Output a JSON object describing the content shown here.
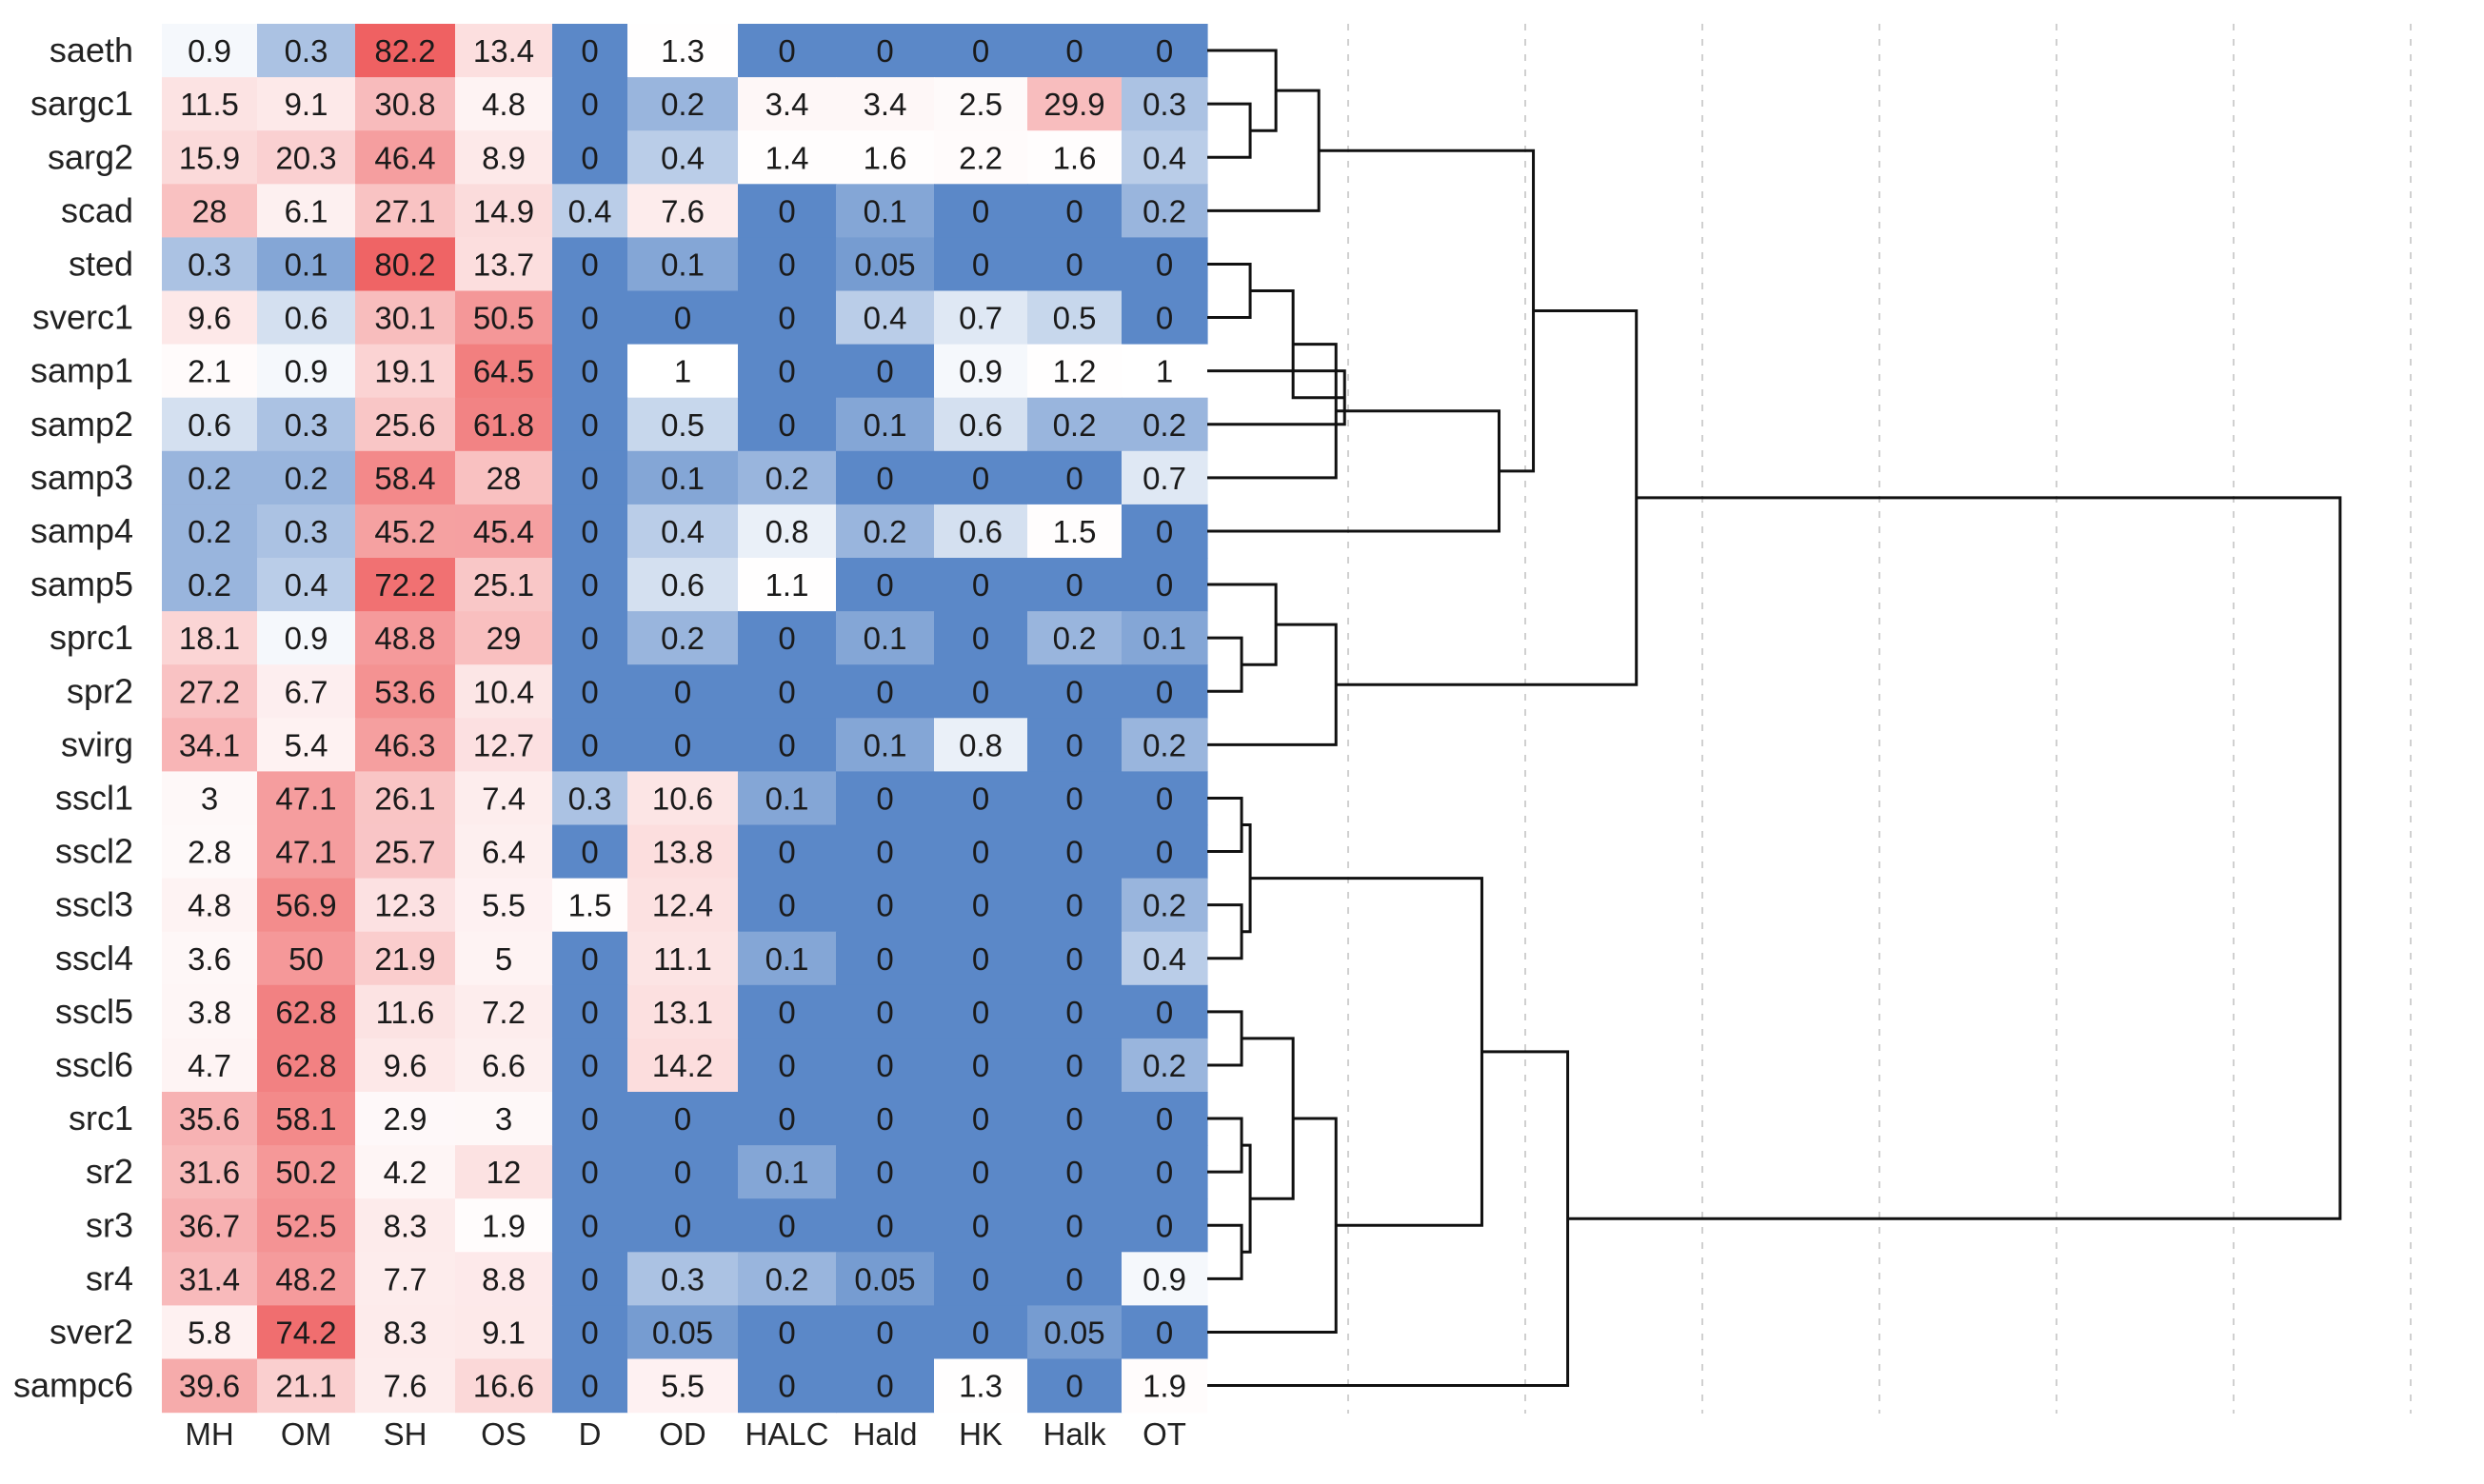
{
  "chart_data": {
    "type": "heatmap",
    "title": "",
    "columns": [
      "MH",
      "OM",
      "SH",
      "OS",
      "D",
      "OD",
      "HALC",
      "Hald",
      "HK",
      "Halk",
      "OT"
    ],
    "rows": [
      {
        "label": "saeth",
        "values": [
          "0.9",
          "0.3",
          "82.2",
          "13.4",
          "0",
          "1.3",
          "0",
          "0",
          "0",
          "0",
          "0"
        ]
      },
      {
        "label": "sargc1",
        "values": [
          "11.5",
          "9.1",
          "30.8",
          "4.8",
          "0",
          "0.2",
          "3.4",
          "3.4",
          "2.5",
          "29.9",
          "0.3"
        ]
      },
      {
        "label": "sarg2",
        "values": [
          "15.9",
          "20.3",
          "46.4",
          "8.9",
          "0",
          "0.4",
          "1.4",
          "1.6",
          "2.2",
          "1.6",
          "0.4"
        ]
      },
      {
        "label": "scad",
        "values": [
          "28",
          "6.1",
          "27.1",
          "14.9",
          "0.4",
          "7.6",
          "0",
          "0.1",
          "0",
          "0",
          "0.2"
        ]
      },
      {
        "label": "sted",
        "values": [
          "0.3",
          "0.1",
          "80.2",
          "13.7",
          "0",
          "0.1",
          "0",
          "0.05",
          "0",
          "0",
          "0"
        ]
      },
      {
        "label": "sverc1",
        "values": [
          "9.6",
          "0.6",
          "30.1",
          "50.5",
          "0",
          "0",
          "0",
          "0.4",
          "0.7",
          "0.5",
          "0"
        ]
      },
      {
        "label": "samp1",
        "values": [
          "2.1",
          "0.9",
          "19.1",
          "64.5",
          "0",
          "1",
          "0",
          "0",
          "0.9",
          "1.2",
          "1"
        ]
      },
      {
        "label": "samp2",
        "values": [
          "0.6",
          "0.3",
          "25.6",
          "61.8",
          "0",
          "0.5",
          "0",
          "0.1",
          "0.6",
          "0.2",
          "0.2"
        ]
      },
      {
        "label": "samp3",
        "values": [
          "0.2",
          "0.2",
          "58.4",
          "28",
          "0",
          "0.1",
          "0.2",
          "0",
          "0",
          "0",
          "0.7"
        ]
      },
      {
        "label": "samp4",
        "values": [
          "0.2",
          "0.3",
          "45.2",
          "45.4",
          "0",
          "0.4",
          "0.8",
          "0.2",
          "0.6",
          "1.5",
          "0"
        ]
      },
      {
        "label": "samp5",
        "values": [
          "0.2",
          "0.4",
          "72.2",
          "25.1",
          "0",
          "0.6",
          "1.1",
          "0",
          "0",
          "0",
          "0"
        ]
      },
      {
        "label": "sprc1",
        "values": [
          "18.1",
          "0.9",
          "48.8",
          "29",
          "0",
          "0.2",
          "0",
          "0.1",
          "0",
          "0.2",
          "0.1"
        ]
      },
      {
        "label": "spr2",
        "values": [
          "27.2",
          "6.7",
          "53.6",
          "10.4",
          "0",
          "0",
          "0",
          "0",
          "0",
          "0",
          "0"
        ]
      },
      {
        "label": "svirg",
        "values": [
          "34.1",
          "5.4",
          "46.3",
          "12.7",
          "0",
          "0",
          "0",
          "0.1",
          "0.8",
          "0",
          "0.2"
        ]
      },
      {
        "label": "sscl1",
        "values": [
          "3",
          "47.1",
          "26.1",
          "7.4",
          "0.3",
          "10.6",
          "0.1",
          "0",
          "0",
          "0",
          "0"
        ]
      },
      {
        "label": "sscl2",
        "values": [
          "2.8",
          "47.1",
          "25.7",
          "6.4",
          "0",
          "13.8",
          "0",
          "0",
          "0",
          "0",
          "0"
        ]
      },
      {
        "label": "sscl3",
        "values": [
          "4.8",
          "56.9",
          "12.3",
          "5.5",
          "1.5",
          "12.4",
          "0",
          "0",
          "0",
          "0",
          "0.2"
        ]
      },
      {
        "label": "sscl4",
        "values": [
          "3.6",
          "50",
          "21.9",
          "5",
          "0",
          "11.1",
          "0.1",
          "0",
          "0",
          "0",
          "0.4"
        ]
      },
      {
        "label": "sscl5",
        "values": [
          "3.8",
          "62.8",
          "11.6",
          "7.2",
          "0",
          "13.1",
          "0",
          "0",
          "0",
          "0",
          "0"
        ]
      },
      {
        "label": "sscl6",
        "values": [
          "4.7",
          "62.8",
          "9.6",
          "6.6",
          "0",
          "14.2",
          "0",
          "0",
          "0",
          "0",
          "0.2"
        ]
      },
      {
        "label": "src1",
        "values": [
          "35.6",
          "58.1",
          "2.9",
          "3",
          "0",
          "0",
          "0",
          "0",
          "0",
          "0",
          "0"
        ]
      },
      {
        "label": "sr2",
        "values": [
          "31.6",
          "50.2",
          "4.2",
          "12",
          "0",
          "0",
          "0.1",
          "0",
          "0",
          "0",
          "0"
        ]
      },
      {
        "label": "sr3",
        "values": [
          "36.7",
          "52.5",
          "8.3",
          "1.9",
          "0",
          "0",
          "0",
          "0",
          "0",
          "0",
          "0"
        ]
      },
      {
        "label": "sr4",
        "values": [
          "31.4",
          "48.2",
          "7.7",
          "8.8",
          "0",
          "0.3",
          "0.2",
          "0.05",
          "0",
          "0",
          "0.9"
        ]
      },
      {
        "label": "sver2",
        "values": [
          "5.8",
          "74.2",
          "8.3",
          "9.1",
          "0",
          "0.05",
          "0",
          "0",
          "0",
          "0.05",
          "0"
        ]
      },
      {
        "label": "sampc6",
        "values": [
          "39.6",
          "21.1",
          "7.6",
          "16.6",
          "0",
          "5.5",
          "0",
          "0",
          "1.3",
          "0",
          "1.9"
        ]
      }
    ],
    "color_scale": {
      "min_color": "#5b88c8",
      "mid_color": "#ffffff",
      "max_color": "#ef6162"
    },
    "dendrogram": {
      "leaf_order": [
        "saeth",
        "sargc1",
        "sarg2",
        "scad",
        "sted",
        "sverc1",
        "samp1",
        "samp2",
        "samp3",
        "samp4",
        "samp5",
        "sprc1",
        "spr2",
        "svirg",
        "sscl1",
        "sscl2",
        "sscl3",
        "sscl4",
        "sscl5",
        "sscl6",
        "src1",
        "sr2",
        "sr3",
        "sr4",
        "sver2",
        "sampc6"
      ],
      "height_unit": "relative linkage distance (tick gridlines unlabeled)",
      "height_range": [
        0,
        7
      ],
      "merges": [
        {
          "a": "L:sargc1",
          "b": "L:sarg2",
          "height": 0.25
        },
        {
          "a": "L:saeth",
          "b": "N0",
          "height": 0.4
        },
        {
          "a": "L:sted",
          "b": "L:sverc1",
          "height": 0.25
        },
        {
          "a": "L:samp1",
          "b": "L:samp2",
          "height": 0.8
        },
        {
          "a": "N2",
          "b": "N3",
          "height": 0.5
        },
        {
          "a": "N4",
          "b": "L:samp3",
          "height": 0.75
        },
        {
          "a": "N5",
          "b": "L:samp4",
          "height": 1.7
        },
        {
          "a": "N1",
          "b": "L:scad",
          "height": 0.65
        },
        {
          "a": "N7",
          "b": "N6",
          "height": 1.9
        },
        {
          "a": "L:sprc1",
          "b": "L:spr2",
          "height": 0.2
        },
        {
          "a": "L:samp5",
          "b": "N9",
          "height": 0.4
        },
        {
          "a": "N10",
          "b": "L:svirg",
          "height": 0.75
        },
        {
          "a": "N8",
          "b": "N11",
          "height": 2.5
        },
        {
          "a": "L:sscl1",
          "b": "L:sscl2",
          "height": 0.2
        },
        {
          "a": "L:sscl3",
          "b": "L:sscl4",
          "height": 0.2
        },
        {
          "a": "N13",
          "b": "N14",
          "height": 0.25
        },
        {
          "a": "L:sscl5",
          "b": "L:sscl6",
          "height": 0.2
        },
        {
          "a": "L:sr3",
          "b": "L:sr4",
          "height": 0.2
        },
        {
          "a": "L:src1",
          "b": "L:sr2",
          "height": 0.2
        },
        {
          "a": "N18",
          "b": "N17",
          "height": 0.25
        },
        {
          "a": "N16",
          "b": "N19",
          "height": 0.5
        },
        {
          "a": "N20",
          "b": "L:sver2",
          "height": 0.75
        },
        {
          "a": "N15",
          "b": "N21",
          "height": 1.6
        },
        {
          "a": "N22",
          "b": "L:sampc6",
          "height": 2.1
        },
        {
          "a": "N12",
          "b": "N23",
          "height": 6.6
        }
      ]
    },
    "xlabel": "",
    "ylabel": ""
  }
}
